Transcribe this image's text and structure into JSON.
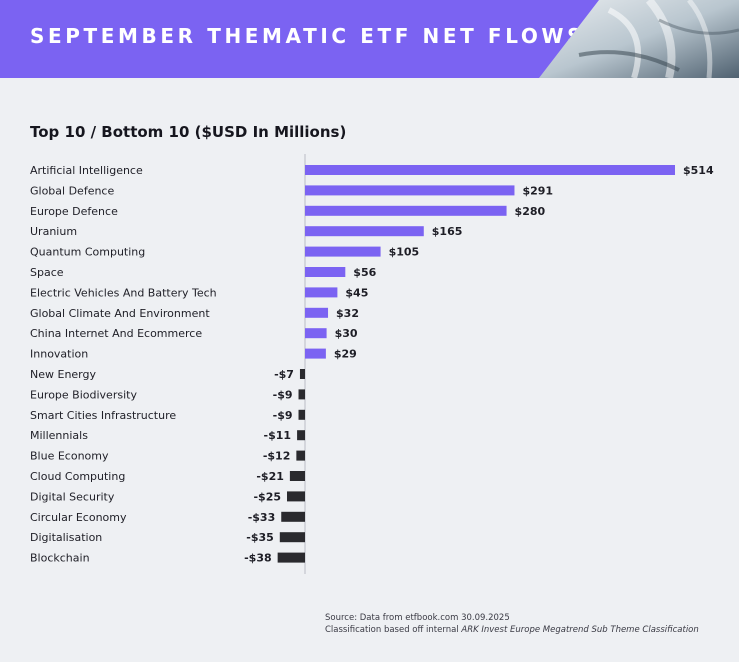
{
  "header": {
    "title": "SEPTEMBER THEMATIC ETF NET FLOWS"
  },
  "source": {
    "line1": "Source: Data from etfbook.com 30.09.2025",
    "line2_prefix": "Classification based off internal ",
    "line2_italic": "ARK Invest Europe Megatrend Sub Theme Classification"
  },
  "chart_data": {
    "type": "bar",
    "orientation": "horizontal",
    "title": "Top 10 / Bottom 10 ($USD In Millions)",
    "xlabel": "",
    "ylabel": "",
    "categories": [
      "Artificial Intelligence",
      "Global Defence",
      "Europe Defence",
      "Uranium",
      "Quantum Computing",
      "Space",
      "Electric Vehicles And Battery Tech",
      "Global Climate And Environment",
      "China Internet And Ecommerce",
      "Innovation",
      "New Energy",
      "Europe Biodiversity",
      "Smart Cities Infrastructure",
      "Millennials",
      "Blue Economy",
      "Cloud Computing",
      "Digital Security",
      "Circular Economy",
      "Digitalisation",
      "Blockchain"
    ],
    "values": [
      514,
      291,
      280,
      165,
      105,
      56,
      45,
      32,
      30,
      29,
      -7,
      -9,
      -9,
      -11,
      -12,
      -21,
      -25,
      -33,
      -35,
      -38
    ],
    "data_labels": [
      "$514",
      "$291",
      "$280",
      "$165",
      "$105",
      "$56",
      "$45",
      "$32",
      "$30",
      "$29",
      "-$7",
      "-$9",
      "-$9",
      "-$11",
      "-$12",
      "-$21",
      "-$25",
      "-$33",
      "-$35",
      "-$38"
    ],
    "colors": {
      "positive": "#7b63f2",
      "negative": "#2a2a2e",
      "axis": "#b9bcc4"
    },
    "grid": false,
    "legend": "none"
  }
}
